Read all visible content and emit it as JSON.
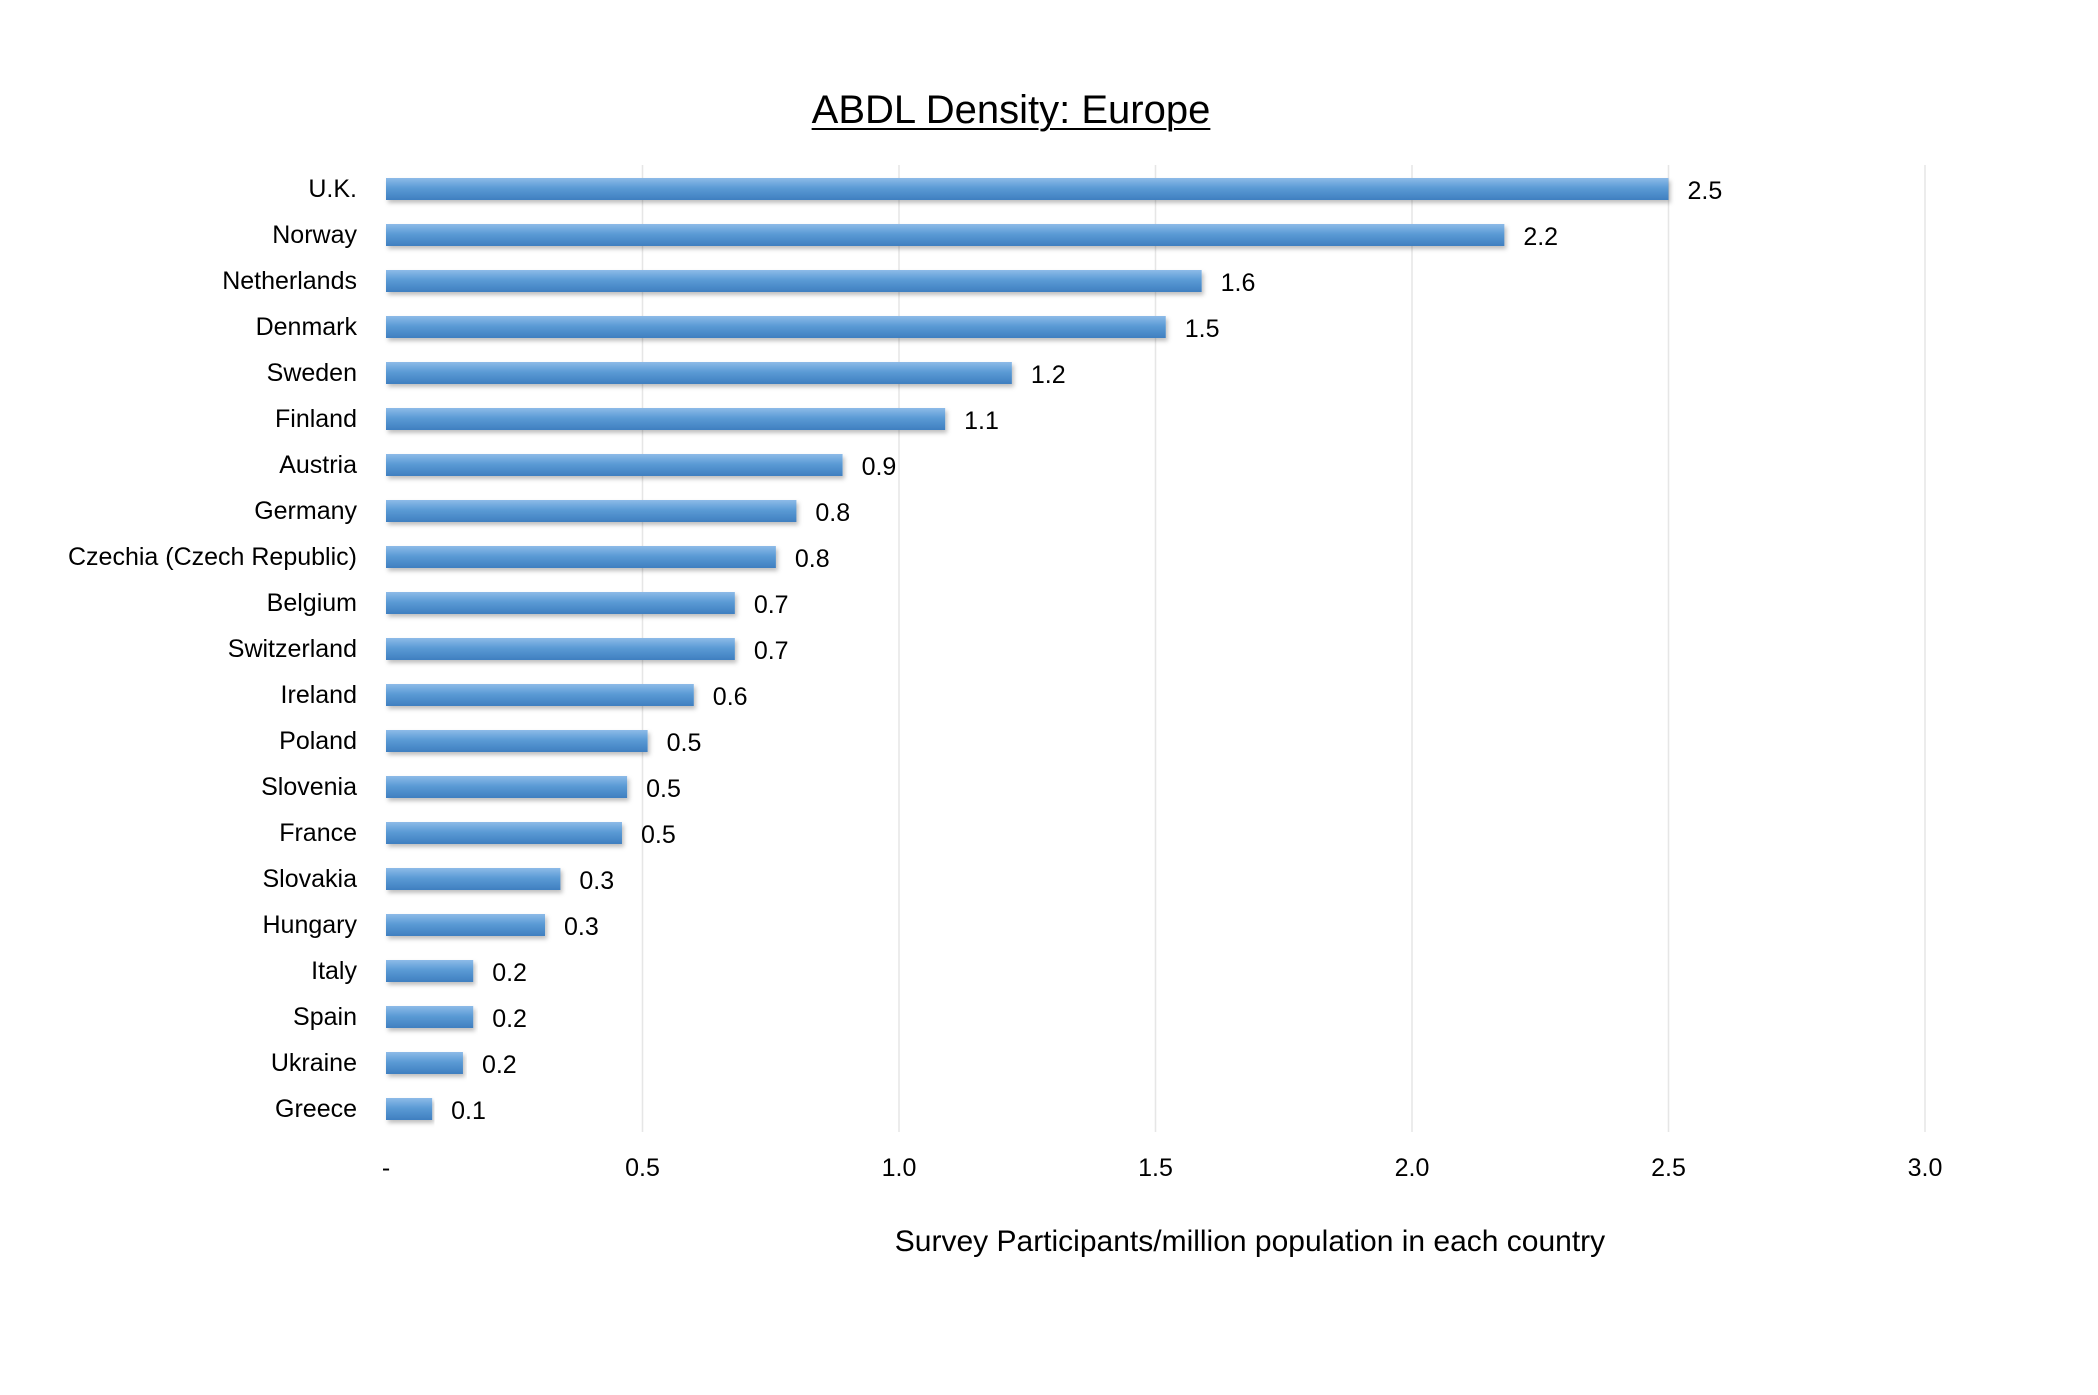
{
  "chart_data": {
    "type": "bar",
    "orientation": "horizontal",
    "title": "ABDL Density: Europe",
    "xlabel": "Survey Participants/million population in each country",
    "ylabel": "",
    "xlim": [
      0,
      3.0
    ],
    "x_ticks": [
      {
        "value": 0,
        "label": "-"
      },
      {
        "value": 0.5,
        "label": "0.5"
      },
      {
        "value": 1.0,
        "label": "1.0"
      },
      {
        "value": 1.5,
        "label": "1.5"
      },
      {
        "value": 2.0,
        "label": "2.0"
      },
      {
        "value": 2.5,
        "label": "2.5"
      },
      {
        "value": 3.0,
        "label": "3.0"
      }
    ],
    "grid": "vertical",
    "categories": [
      "U.K.",
      "Norway",
      "Netherlands",
      "Denmark",
      "Sweden",
      "Finland",
      "Austria",
      "Germany",
      "Czechia (Czech Republic)",
      "Belgium",
      "Switzerland",
      "Ireland",
      "Poland",
      "Slovenia",
      "France",
      "Slovakia",
      "Hungary",
      "Italy",
      "Spain",
      "Ukraine",
      "Greece"
    ],
    "values": [
      2.5,
      2.18,
      1.59,
      1.52,
      1.22,
      1.09,
      0.89,
      0.8,
      0.76,
      0.68,
      0.68,
      0.6,
      0.51,
      0.47,
      0.46,
      0.34,
      0.31,
      0.17,
      0.17,
      0.15,
      0.09
    ],
    "value_labels": [
      "2.5",
      "2.2",
      "1.6",
      "1.5",
      "1.2",
      "1.1",
      "0.9",
      "0.8",
      "0.8",
      "0.7",
      "0.7",
      "0.6",
      "0.5",
      "0.5",
      "0.5",
      "0.3",
      "0.3",
      "0.2",
      "0.2",
      "0.2",
      "0.1"
    ],
    "bar_color": "#5b9bd5"
  }
}
